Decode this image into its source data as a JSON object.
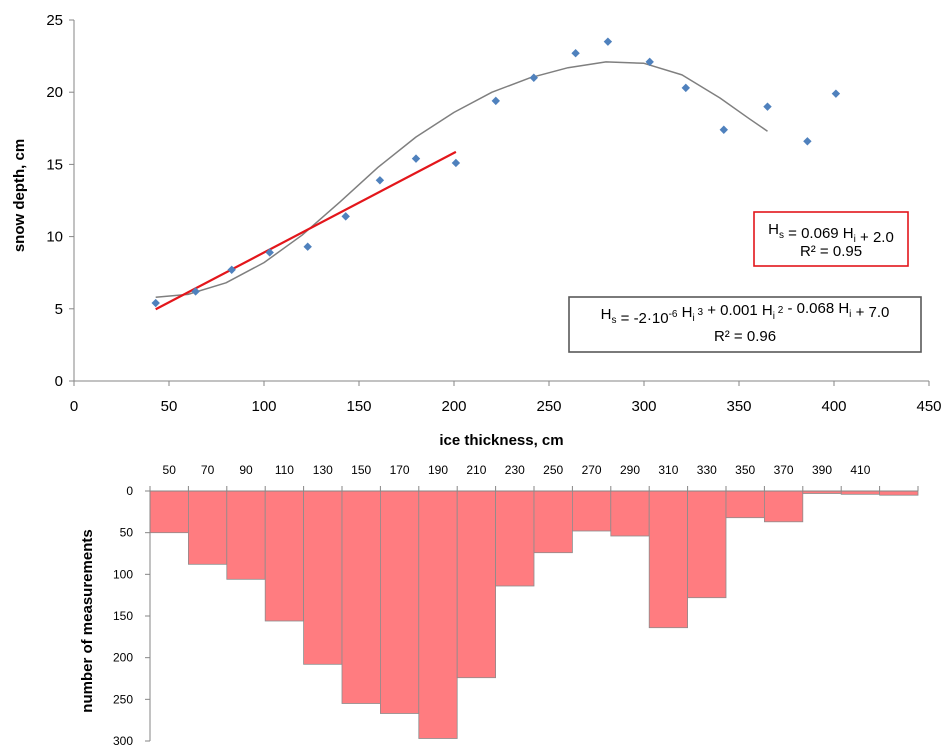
{
  "chart_data": [
    {
      "type": "scatter",
      "xlabel": "ice thickness, cm",
      "ylabel": "snow depth, cm",
      "xlim": [
        0,
        450
      ],
      "ylim": [
        0,
        25
      ],
      "xticks": [
        0,
        50,
        100,
        150,
        200,
        250,
        300,
        350,
        400,
        450
      ],
      "yticks": [
        0,
        5,
        10,
        15,
        20,
        25
      ],
      "grid": false,
      "series": [
        {
          "kind": "scatter",
          "color": "#4f81bd",
          "x": [
            43,
            64,
            83,
            103,
            123,
            143,
            161,
            180,
            201,
            222,
            242,
            264,
            281,
            303,
            322,
            342,
            365,
            386,
            401
          ],
          "y": [
            5.4,
            6.2,
            7.7,
            8.9,
            9.3,
            11.4,
            13.9,
            15.4,
            15.1,
            19.4,
            21.0,
            22.7,
            23.5,
            22.1,
            20.3,
            17.4,
            19.0,
            16.6,
            19.9
          ]
        },
        {
          "kind": "linear-fit",
          "color": "#e3161b",
          "coef": {
            "slope": 0.069,
            "intercept": 2.0
          },
          "x_range": [
            43,
            201
          ]
        },
        {
          "kind": "cubic-fit",
          "color": "#7f7f7f",
          "x": [
            43,
            60,
            80,
            100,
            120,
            140,
            160,
            180,
            200,
            220,
            240,
            260,
            280,
            300,
            320,
            340,
            355,
            365
          ],
          "y": [
            5.8,
            6.0,
            6.8,
            8.2,
            10.1,
            12.4,
            14.8,
            16.9,
            18.6,
            20.0,
            21.0,
            21.7,
            22.1,
            22.0,
            21.2,
            19.6,
            18.2,
            17.3
          ]
        }
      ],
      "annotations": [
        {
          "id": "linear",
          "border": "#e3161b",
          "line1": [
            {
              "t": "H"
            },
            {
              "t": "s",
              "sub": true
            },
            {
              "t": " = 0.069 H"
            },
            {
              "t": "i",
              "sub": true
            },
            {
              "t": " + 2.0"
            }
          ],
          "line2": "R² = 0.95"
        },
        {
          "id": "cubic",
          "border": "#595959",
          "line1": [
            {
              "t": "H"
            },
            {
              "t": "s",
              "sub": true
            },
            {
              "t": " = -2·10"
            },
            {
              "t": "-6",
              "sup": true
            },
            {
              "t": " H"
            },
            {
              "t": "i",
              "sub": true
            },
            {
              "t": " 3",
              "sup": true
            },
            {
              "t": " + 0.001 H"
            },
            {
              "t": "i",
              "sub": true
            },
            {
              "t": " 2",
              "sup": true
            },
            {
              "t": " - 0.068 H"
            },
            {
              "t": "i",
              "sub": true
            },
            {
              "t": "  + 7.0"
            }
          ],
          "line2": "R² = 0.96"
        }
      ]
    },
    {
      "type": "bar",
      "ylabel": "number of measurements",
      "ylim": [
        0,
        300
      ],
      "yticks": [
        0,
        50,
        100,
        150,
        200,
        250,
        300
      ],
      "y_inverted": true,
      "color": "#ff7c80",
      "categories": [
        "50",
        "70",
        "90",
        "110",
        "130",
        "150",
        "170",
        "190",
        "210",
        "230",
        "250",
        "270",
        "290",
        "310",
        "330",
        "350",
        "370",
        "390",
        "410",
        ""
      ],
      "values": [
        50,
        88,
        106,
        156,
        208,
        255,
        267,
        297,
        224,
        114,
        74,
        48,
        54,
        164,
        128,
        32,
        37,
        3,
        4,
        5
      ]
    }
  ]
}
